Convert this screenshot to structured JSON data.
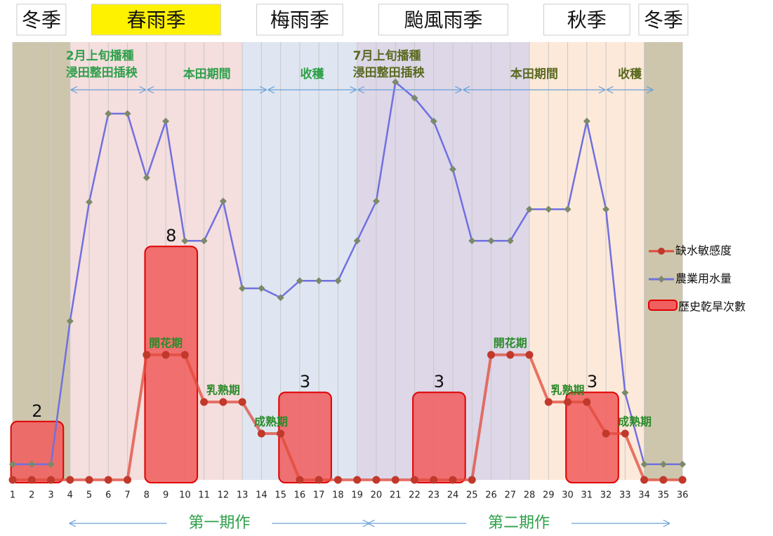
{
  "chart_data": {
    "type": "line",
    "categories": [
      1,
      2,
      3,
      4,
      5,
      6,
      7,
      8,
      9,
      10,
      11,
      12,
      13,
      14,
      15,
      16,
      17,
      18,
      19,
      20,
      21,
      22,
      23,
      24,
      25,
      26,
      27,
      28,
      29,
      30,
      31,
      32,
      33,
      34,
      35,
      36
    ],
    "ylim": [
      0,
      104
    ],
    "y2lim": [
      0,
      15
    ],
    "grid": true,
    "legend": "right",
    "seasons": [
      {
        "label": "冬季",
        "start": 1,
        "end": 4,
        "color": "#cdc6ac"
      },
      {
        "label": "春雨季",
        "start": 4,
        "end": 13,
        "color": "#f5dede",
        "highlight": "#fff200"
      },
      {
        "label": "梅雨季",
        "start": 13,
        "end": 19,
        "color": "#dfe6f1"
      },
      {
        "label": "颱風雨季",
        "start": 19,
        "end": 28,
        "color": "#ddd7e8"
      },
      {
        "label": "秋季",
        "start": 28,
        "end": 34,
        "color": "#fde9da"
      },
      {
        "label": "冬季",
        "start": 34,
        "end": 36,
        "color": "#cdc6ac"
      }
    ],
    "series": [
      {
        "name": "缺水敏感度",
        "color": "#e04a3a",
        "values": [
          0,
          0,
          0,
          0,
          0,
          0,
          0,
          29.7,
          29.7,
          29.7,
          18.5,
          18.5,
          18.5,
          11,
          11,
          0,
          0,
          0,
          0,
          0,
          0,
          0,
          0,
          0,
          0,
          29.7,
          29.7,
          29.7,
          18.5,
          18.5,
          18.5,
          11,
          11,
          0,
          0,
          0
        ]
      },
      {
        "name": "農業用水量",
        "color": "#7070e0",
        "values": [
          3.7,
          3.7,
          3.7,
          37.7,
          66,
          87,
          87,
          71.8,
          85.2,
          56.8,
          56.8,
          66.2,
          45.5,
          45.5,
          43.3,
          47.3,
          47.3,
          47.3,
          56.8,
          66.2,
          94.5,
          90.7,
          85.2,
          73.8,
          56.8,
          56.8,
          56.8,
          64.3,
          64.3,
          64.3,
          85.2,
          64.3,
          20.7,
          3.7,
          3.7,
          3.7
        ]
      }
    ],
    "droughts": {
      "name": "歷史乾旱次數",
      "color": "#f06060",
      "bars": [
        {
          "start": 1,
          "end": 3,
          "value": 2
        },
        {
          "start": 8,
          "end": 10,
          "value": 8
        },
        {
          "start": 15,
          "end": 17,
          "value": 3
        },
        {
          "start": 22,
          "end": 24,
          "value": 3
        },
        {
          "start": 30,
          "end": 32,
          "value": 3
        }
      ]
    },
    "periods": [
      {
        "lines": [
          "2月上旬播種",
          "浸田整田插秧"
        ],
        "start": 4,
        "end": 8,
        "color": "#2ea04a"
      },
      {
        "lines": [
          "本田期間"
        ],
        "start": 8,
        "end": 14.3,
        "color": "#2ea04a"
      },
      {
        "lines": [
          "收穫"
        ],
        "start": 14.3,
        "end": 19,
        "color": "#2ea04a"
      },
      {
        "lines": [
          "7月上旬播種",
          "浸田整田插秧"
        ],
        "start": 19,
        "end": 24.5,
        "color": "#5a6a20"
      },
      {
        "lines": [
          "本田期間"
        ],
        "start": 24.5,
        "end": 32,
        "color": "#5a6a20"
      },
      {
        "lines": [
          "收穫"
        ],
        "start": 32,
        "end": 34.5,
        "color": "#5a6a20"
      }
    ],
    "stages": [
      {
        "label": "開花期",
        "at": 9
      },
      {
        "label": "乳熟期",
        "at": 12
      },
      {
        "label": "成熟期",
        "at": 14.5
      },
      {
        "label": "開花期",
        "at": 27
      },
      {
        "label": "乳熟期",
        "at": 30
      },
      {
        "label": "成熟期",
        "at": 33.5
      }
    ],
    "crops": [
      {
        "label": "第一期作",
        "start": 4,
        "end": 19.6
      },
      {
        "label": "第二期作",
        "start": 19.6,
        "end": 35.3
      }
    ]
  }
}
